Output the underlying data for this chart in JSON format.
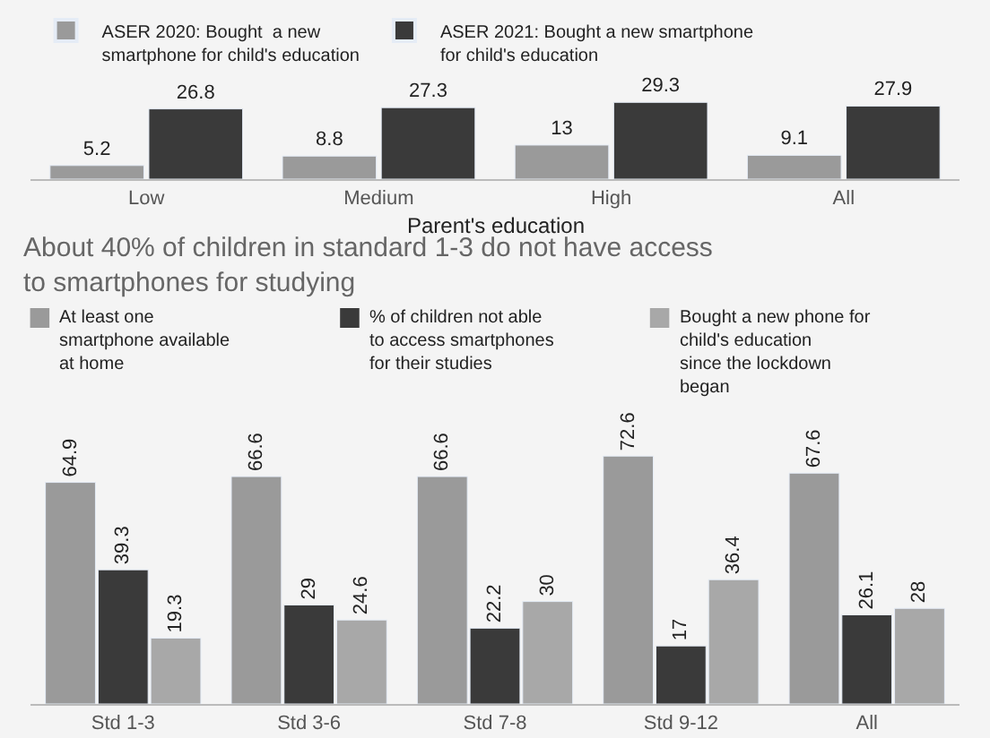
{
  "chart_data": [
    {
      "type": "bar",
      "categories": [
        "Low",
        "Medium",
        "High",
        "All"
      ],
      "xlabel": "Parent's education",
      "data_labels": true,
      "legend": "top",
      "grid": false,
      "series": [
        {
          "name": "ASER 2020: Bought  a new smartphone for child's education",
          "color": "#9a9a9a",
          "values": [
            5.2,
            8.8,
            13,
            9.1
          ]
        },
        {
          "name": "ASER 2021: Bought a new smartphone for child's education",
          "color": "#3a3a3a",
          "values": [
            26.8,
            27.3,
            29.3,
            27.9
          ]
        }
      ]
    },
    {
      "type": "bar",
      "title": "About 40% of children in standard 1-3 do not have access to smartphones for studying",
      "categories": [
        "Std 1-3",
        "Std 3-6",
        "Std 7-8",
        "Std 9-12",
        "All"
      ],
      "data_labels": true,
      "legend": "top",
      "grid": false,
      "series": [
        {
          "name": "At least one smartphone available at home",
          "color": "#9a9a9a",
          "values": [
            64.9,
            66.6,
            66.6,
            72.6,
            67.6
          ]
        },
        {
          "name": "% of children not able to access smartphones for their studies",
          "color": "#3a3a3a",
          "values": [
            39.3,
            29,
            22.2,
            17,
            26.1
          ]
        },
        {
          "name": "Bought a new phone for child's education since the lockdown began",
          "color": "#a8a8a8",
          "values": [
            19.3,
            24.6,
            30,
            36.4,
            28
          ]
        }
      ]
    }
  ]
}
